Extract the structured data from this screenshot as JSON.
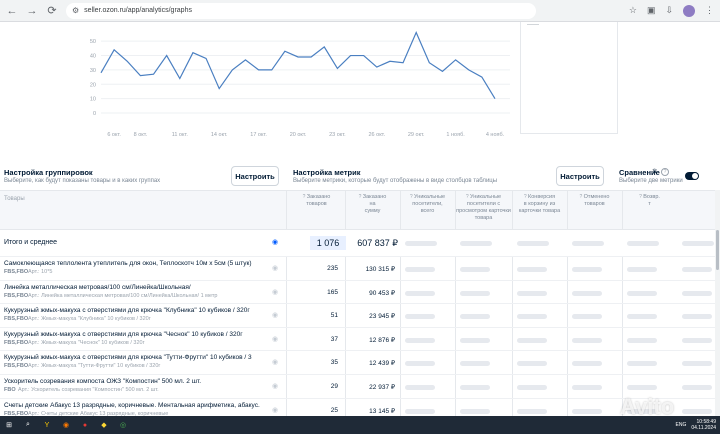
{
  "browser": {
    "url": "seller.ozon.ru/app/analytics/graphs",
    "nav_icons": [
      "back-icon",
      "forward-icon",
      "reload-icon"
    ]
  },
  "chart_data": {
    "type": "line",
    "color": "#4a7fc1",
    "x": [
      "5 окт.",
      "6 окт.",
      "7 окт.",
      "8 окт.",
      "9 окт.",
      "10 окт.",
      "11 окт.",
      "12 окт.",
      "13 окт.",
      "14 окт.",
      "15 окт.",
      "16 окт.",
      "17 окт.",
      "18 окт.",
      "19 окт.",
      "20 окт.",
      "21 окт.",
      "22 окт.",
      "23 окт.",
      "24 окт.",
      "25 окт.",
      "26 окт.",
      "27 окт.",
      "28 окт.",
      "29 окт.",
      "30 окт.",
      "31 окт.",
      "1 нояб.",
      "2 нояб.",
      "3 нояб.",
      "4 нояб."
    ],
    "y": [
      28,
      44,
      36,
      26,
      27,
      40,
      24,
      42,
      38,
      17,
      30,
      37,
      30,
      30,
      43,
      39,
      39,
      46,
      31,
      40,
      40,
      32,
      36,
      35,
      56,
      35,
      29,
      37,
      30,
      25,
      10
    ],
    "xticks": [
      "6 окт.",
      "8 окт.",
      "11 окт.",
      "14 окт.",
      "17 окт.",
      "20 окт.",
      "23 окт.",
      "26 окт.",
      "29 окт.",
      "1 нояб.",
      "4 нояб."
    ],
    "yticks": [
      "0",
      "10",
      "20",
      "30",
      "40",
      "50"
    ],
    "ylim": [
      0,
      55
    ],
    "grid": true
  },
  "legend_panel": {
    "dash": "——"
  },
  "grouping": {
    "title": "Настройка группировок",
    "subtitle": "Выберите, как будут показаны товары и в каких группах",
    "button": "Настроить"
  },
  "metrics": {
    "title": "Настройка метрик",
    "subtitle": "Выберите метрики, которые будут отображены в виде столбцов таблицы",
    "button": "Настроить"
  },
  "comparison": {
    "title": "Сравнение",
    "subtitle": "Выберите две метрики"
  },
  "table": {
    "products_header": "Товары",
    "columns": [
      {
        "l1": "Заказано",
        "l2": "товаров",
        "l3": ""
      },
      {
        "l1": "Заказано",
        "l2": "на",
        "l3": "сумму"
      },
      {
        "l1": "Уникальные",
        "l2": "посетители,",
        "l3": "всего"
      },
      {
        "l1": "Уникальные",
        "l2": "посетители с",
        "l3": "просмотром карточки товара"
      },
      {
        "l1": "Конверсия",
        "l2": "в корзину из",
        "l3": "карточки товара"
      },
      {
        "l1": "Отменено",
        "l2": "товаров",
        "l3": ""
      },
      {
        "l1": "Возвр.",
        "l2": "т",
        "l3": ""
      }
    ],
    "total": {
      "name": "Итого и среднее",
      "qty": "1 076",
      "sum": "607 837 ₽"
    },
    "rows": [
      {
        "name": "Самоклеющаяся теплолента утеплитель для окон, Теплоскотч 10м х 5см (5 штук)",
        "tag": "FBS,FBO",
        "meta": "Арт.: 10*5",
        "qty": "235",
        "sum": "130 315 ₽"
      },
      {
        "name": "Линейка металлическая метровая/100 см/Линейка/Школьная/",
        "tag": "FBS,FBO",
        "meta": "Арт.: Линейка металлическая метровая/100 см/Линейка/Школьная/ 1 метр",
        "qty": "165",
        "sum": "90 453 ₽"
      },
      {
        "name": "Кукурузный жмых-макуха с отверстиями для крючка \"Клубника\" 10 кубиков / 320г",
        "tag": "FBS,FBO",
        "meta": "Арт.: Жмых-макуха \"Клубника\" 10 кубиков / 320г",
        "qty": "51",
        "sum": "23 945 ₽"
      },
      {
        "name": "Кукурузный жмых-макуха с отверстиями для крючка \"Чеснок\" 10 кубиков / 320г",
        "tag": "FBS,FBO",
        "meta": "Арт.: Жмых-макуха \"Чеснок\" 10 кубиков / 320г",
        "qty": "37",
        "sum": "12 876 ₽"
      },
      {
        "name": "Кукурузный жмых-макуха с отверстиями для крючка \"Тутти-Фрутти\" 10 кубиков / 3",
        "tag": "FBS,FBO",
        "meta": "Арт.: Жмых-макуха \"Тутти-Фрутти\" 10 кубиков / 320г",
        "qty": "35",
        "sum": "12 439 ₽"
      },
      {
        "name": "Ускоритель созревания компоста ОЖЗ \"Компостин\" 500 мл. 2 шт.",
        "tag": "FBO",
        "meta": "Арт.: Ускоритель созревания \"Компостин\" 500 мл. 2 шт.",
        "qty": "29",
        "sum": "22 937 ₽"
      },
      {
        "name": "Счеты детские Абакус 13 разрядные, коричневые. Ментальная арифметика, абакус.",
        "tag": "FBS,FBO",
        "meta": "Арт.: Счеты детские Абакус 13 разрядные, коричневые",
        "qty": "25",
        "sum": "13 145 ₽"
      }
    ]
  },
  "taskbar": {
    "lang": "ENG",
    "time": "10:58:49",
    "date": "04.11.2024"
  },
  "watermark": "Avito"
}
